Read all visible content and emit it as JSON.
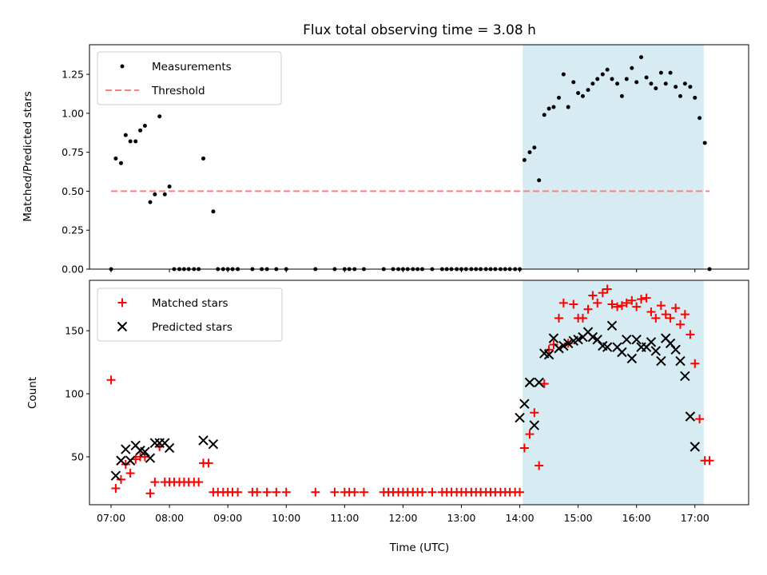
{
  "chart_data": [
    {
      "type": "scatter",
      "title": "Flux total observing time = 3.08 h",
      "xlabel": "",
      "ylabel": "Matched/Predicted stars",
      "xlim": [
        6.63,
        17.92
      ],
      "ylim": [
        0.0,
        1.44
      ],
      "yticks": [
        0.0,
        0.25,
        0.5,
        0.75,
        1.0,
        1.25
      ],
      "ytick_labels": [
        "0.00",
        "0.25",
        "0.50",
        "0.75",
        "1.00",
        "1.25"
      ],
      "shaded_span": [
        14.05,
        17.15
      ],
      "threshold": {
        "name": "Threshold",
        "value": 0.5,
        "x_range": [
          7.0,
          17.25
        ],
        "color": "#ff7f7f"
      },
      "series": [
        {
          "name": "Measurements",
          "color": "#000000",
          "x": [
            7.0,
            7.08,
            7.17,
            7.25,
            7.33,
            7.42,
            7.5,
            7.58,
            7.67,
            7.75,
            7.83,
            7.92,
            8.0,
            8.08,
            8.17,
            8.25,
            8.33,
            8.42,
            8.5,
            8.58,
            8.75,
            8.83,
            8.92,
            9.0,
            9.08,
            9.17,
            9.42,
            9.58,
            9.67,
            9.83,
            10.0,
            10.5,
            10.83,
            11.0,
            11.08,
            11.17,
            11.33,
            11.67,
            11.83,
            11.92,
            12.0,
            12.08,
            12.17,
            12.25,
            12.33,
            12.5,
            12.67,
            12.75,
            12.83,
            12.92,
            13.0,
            13.08,
            13.17,
            13.25,
            13.33,
            13.42,
            13.5,
            13.58,
            13.67,
            13.75,
            13.83,
            13.92,
            14.0,
            14.08,
            14.17,
            14.25,
            14.33,
            14.42,
            14.5,
            14.58,
            14.67,
            14.75,
            14.83,
            14.92,
            15.0,
            15.08,
            15.17,
            15.25,
            15.33,
            15.42,
            15.5,
            15.58,
            15.67,
            15.75,
            15.83,
            15.92,
            16.0,
            16.08,
            16.17,
            16.25,
            16.33,
            16.42,
            16.5,
            16.58,
            16.67,
            16.75,
            16.83,
            16.92,
            17.0,
            17.08,
            17.17,
            17.25
          ],
          "y": [
            0.0,
            0.71,
            0.68,
            0.86,
            0.82,
            0.82,
            0.89,
            0.92,
            0.43,
            0.48,
            0.98,
            0.48,
            0.53,
            0.0,
            0.0,
            0.0,
            0.0,
            0.0,
            0.0,
            0.71,
            0.37,
            0.0,
            0.0,
            0.0,
            0.0,
            0.0,
            0.0,
            0.0,
            0.0,
            0.0,
            0.0,
            0.0,
            0.0,
            0.0,
            0.0,
            0.0,
            0.0,
            0.0,
            0.0,
            0.0,
            0.0,
            0.0,
            0.0,
            0.0,
            0.0,
            0.0,
            0.0,
            0.0,
            0.0,
            0.0,
            0.0,
            0.0,
            0.0,
            0.0,
            0.0,
            0.0,
            0.0,
            0.0,
            0.0,
            0.0,
            0.0,
            0.0,
            0.0,
            0.7,
            0.75,
            0.78,
            0.57,
            0.99,
            1.03,
            1.04,
            1.1,
            1.25,
            1.04,
            1.2,
            1.13,
            1.11,
            1.15,
            1.19,
            1.22,
            1.25,
            1.28,
            1.22,
            1.19,
            1.11,
            1.22,
            1.29,
            1.2,
            1.36,
            1.23,
            1.19,
            1.16,
            1.26,
            1.19,
            1.26,
            1.17,
            1.11,
            1.19,
            1.17,
            1.1,
            0.97,
            0.81,
            0.0
          ]
        }
      ],
      "legend": [
        "Measurements",
        "Threshold"
      ],
      "legend_position": "top-left"
    },
    {
      "type": "scatter",
      "title": "",
      "xlabel": "Time (UTC)",
      "ylabel": "Count",
      "xlim": [
        6.63,
        17.92
      ],
      "ylim": [
        12,
        190
      ],
      "xticks": [
        7,
        8,
        9,
        10,
        11,
        12,
        13,
        14,
        15,
        16,
        17
      ],
      "xtick_labels": [
        "07:00",
        "08:00",
        "09:00",
        "10:00",
        "11:00",
        "12:00",
        "13:00",
        "14:00",
        "15:00",
        "16:00",
        "17:00"
      ],
      "yticks": [
        50,
        100,
        150
      ],
      "ytick_labels": [
        "50",
        "100",
        "150"
      ],
      "shaded_span": [
        14.05,
        17.15
      ],
      "series": [
        {
          "name": "Matched stars",
          "marker": "plus",
          "color": "#ff0000",
          "points": [
            [
              7.0,
              111
            ],
            [
              7.08,
              25
            ],
            [
              7.17,
              32
            ],
            [
              7.25,
              44
            ],
            [
              7.33,
              37
            ],
            [
              7.42,
              48
            ],
            [
              7.5,
              50
            ],
            [
              7.58,
              50
            ],
            [
              7.67,
              21
            ],
            [
              7.75,
              30
            ],
            [
              7.83,
              58
            ],
            [
              7.92,
              30
            ],
            [
              8.0,
              30
            ],
            [
              8.08,
              30
            ],
            [
              8.17,
              30
            ],
            [
              8.25,
              30
            ],
            [
              8.33,
              30
            ],
            [
              8.42,
              30
            ],
            [
              8.5,
              30
            ],
            [
              8.58,
              45
            ],
            [
              8.67,
              45
            ],
            [
              8.75,
              22
            ],
            [
              8.83,
              22
            ],
            [
              8.92,
              22
            ],
            [
              9.0,
              22
            ],
            [
              9.08,
              22
            ],
            [
              9.17,
              22
            ],
            [
              9.42,
              22
            ],
            [
              9.5,
              22
            ],
            [
              9.67,
              22
            ],
            [
              9.83,
              22
            ],
            [
              10.0,
              22
            ],
            [
              10.5,
              22
            ],
            [
              10.83,
              22
            ],
            [
              11.0,
              22
            ],
            [
              11.08,
              22
            ],
            [
              11.17,
              22
            ],
            [
              11.33,
              22
            ],
            [
              11.67,
              22
            ],
            [
              11.75,
              22
            ],
            [
              11.83,
              22
            ],
            [
              11.92,
              22
            ],
            [
              12.0,
              22
            ],
            [
              12.08,
              22
            ],
            [
              12.17,
              22
            ],
            [
              12.25,
              22
            ],
            [
              12.33,
              22
            ],
            [
              12.5,
              22
            ],
            [
              12.67,
              22
            ],
            [
              12.75,
              22
            ],
            [
              12.83,
              22
            ],
            [
              12.92,
              22
            ],
            [
              13.0,
              22
            ],
            [
              13.08,
              22
            ],
            [
              13.17,
              22
            ],
            [
              13.25,
              22
            ],
            [
              13.33,
              22
            ],
            [
              13.42,
              22
            ],
            [
              13.5,
              22
            ],
            [
              13.58,
              22
            ],
            [
              13.67,
              22
            ],
            [
              13.75,
              22
            ],
            [
              13.83,
              22
            ],
            [
              13.92,
              22
            ],
            [
              14.0,
              22
            ],
            [
              14.08,
              57
            ],
            [
              14.17,
              68
            ],
            [
              14.25,
              85
            ],
            [
              14.33,
              43
            ],
            [
              14.42,
              108
            ],
            [
              14.5,
              135
            ],
            [
              14.58,
              139
            ],
            [
              14.67,
              160
            ],
            [
              14.75,
              172
            ],
            [
              14.83,
              140
            ],
            [
              14.92,
              171
            ],
            [
              15.0,
              160
            ],
            [
              15.08,
              160
            ],
            [
              15.17,
              167
            ],
            [
              15.25,
              178
            ],
            [
              15.33,
              172
            ],
            [
              15.42,
              180
            ],
            [
              15.5,
              183
            ],
            [
              15.58,
              171
            ],
            [
              15.67,
              169
            ],
            [
              15.75,
              170
            ],
            [
              15.83,
              172
            ],
            [
              15.92,
              174
            ],
            [
              16.0,
              169
            ],
            [
              16.08,
              175
            ],
            [
              16.17,
              176
            ],
            [
              16.25,
              165
            ],
            [
              16.33,
              160
            ],
            [
              16.42,
              170
            ],
            [
              16.5,
              163
            ],
            [
              16.58,
              160
            ],
            [
              16.67,
              168
            ],
            [
              16.75,
              155
            ],
            [
              16.83,
              163
            ],
            [
              16.92,
              147
            ],
            [
              17.0,
              124
            ],
            [
              17.08,
              80
            ],
            [
              17.17,
              47
            ],
            [
              17.25,
              47
            ]
          ]
        },
        {
          "name": "Predicted stars",
          "marker": "x",
          "color": "#000000",
          "points": [
            [
              7.08,
              35
            ],
            [
              7.17,
              47
            ],
            [
              7.25,
              56
            ],
            [
              7.33,
              47
            ],
            [
              7.42,
              59
            ],
            [
              7.5,
              55
            ],
            [
              7.58,
              54
            ],
            [
              7.67,
              49
            ],
            [
              7.75,
              61
            ],
            [
              7.83,
              61
            ],
            [
              7.92,
              61
            ],
            [
              8.0,
              57
            ],
            [
              8.58,
              63
            ],
            [
              8.75,
              60
            ],
            [
              14.0,
              81
            ],
            [
              14.08,
              92
            ],
            [
              14.17,
              109
            ],
            [
              14.25,
              75
            ],
            [
              14.33,
              109
            ],
            [
              14.42,
              132
            ],
            [
              14.5,
              131
            ],
            [
              14.58,
              144
            ],
            [
              14.67,
              136
            ],
            [
              14.75,
              138
            ],
            [
              14.83,
              140
            ],
            [
              14.92,
              142
            ],
            [
              15.0,
              143
            ],
            [
              15.08,
              145
            ],
            [
              15.17,
              149
            ],
            [
              15.25,
              145
            ],
            [
              15.33,
              143
            ],
            [
              15.42,
              138
            ],
            [
              15.5,
              137
            ],
            [
              15.58,
              154
            ],
            [
              15.67,
              137
            ],
            [
              15.75,
              133
            ],
            [
              15.83,
              143
            ],
            [
              15.92,
              128
            ],
            [
              16.0,
              143
            ],
            [
              16.08,
              137
            ],
            [
              16.17,
              137
            ],
            [
              16.25,
              141
            ],
            [
              16.33,
              134
            ],
            [
              16.42,
              126
            ],
            [
              16.5,
              144
            ],
            [
              16.58,
              140
            ],
            [
              16.67,
              135
            ],
            [
              16.75,
              126
            ],
            [
              16.83,
              114
            ],
            [
              16.92,
              82
            ],
            [
              17.0,
              58
            ]
          ]
        }
      ],
      "legend": [
        "Matched stars",
        "Predicted stars"
      ],
      "legend_position": "top-left"
    }
  ]
}
